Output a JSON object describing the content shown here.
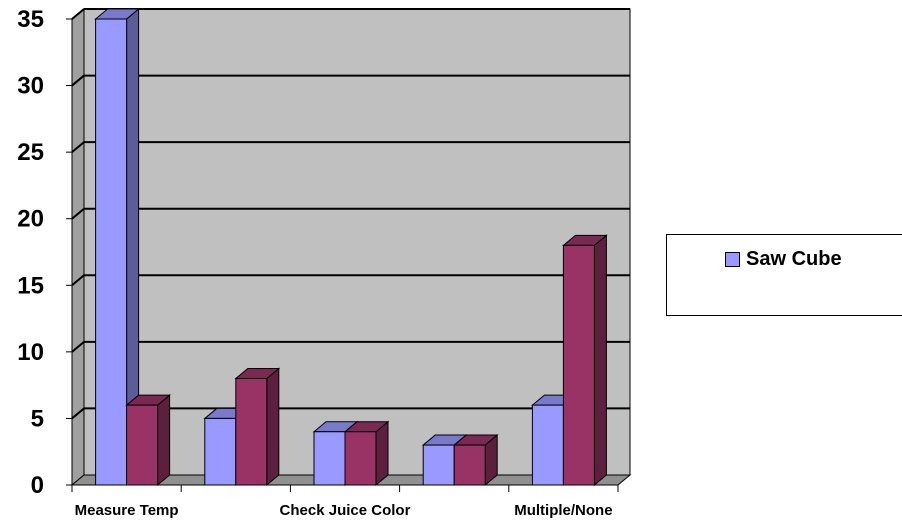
{
  "chart_data": {
    "type": "bar",
    "categories": [
      "Measure Temp",
      "",
      "Check Juice Color",
      "",
      "Multiple/None"
    ],
    "series": [
      {
        "name": "Saw Cube",
        "values": [
          35,
          5,
          4,
          3,
          6
        ],
        "color": "#9999ff"
      },
      {
        "values": [
          6,
          8,
          4,
          3,
          18
        ],
        "color": "#993366"
      }
    ],
    "ylim": [
      0,
      35
    ],
    "yticks": [
      0,
      5,
      10,
      15,
      20,
      25,
      30,
      35
    ],
    "grid": true,
    "legend_position": "right",
    "wall_color": "#c0c0c0"
  },
  "legend": {
    "label": "Saw Cube"
  }
}
